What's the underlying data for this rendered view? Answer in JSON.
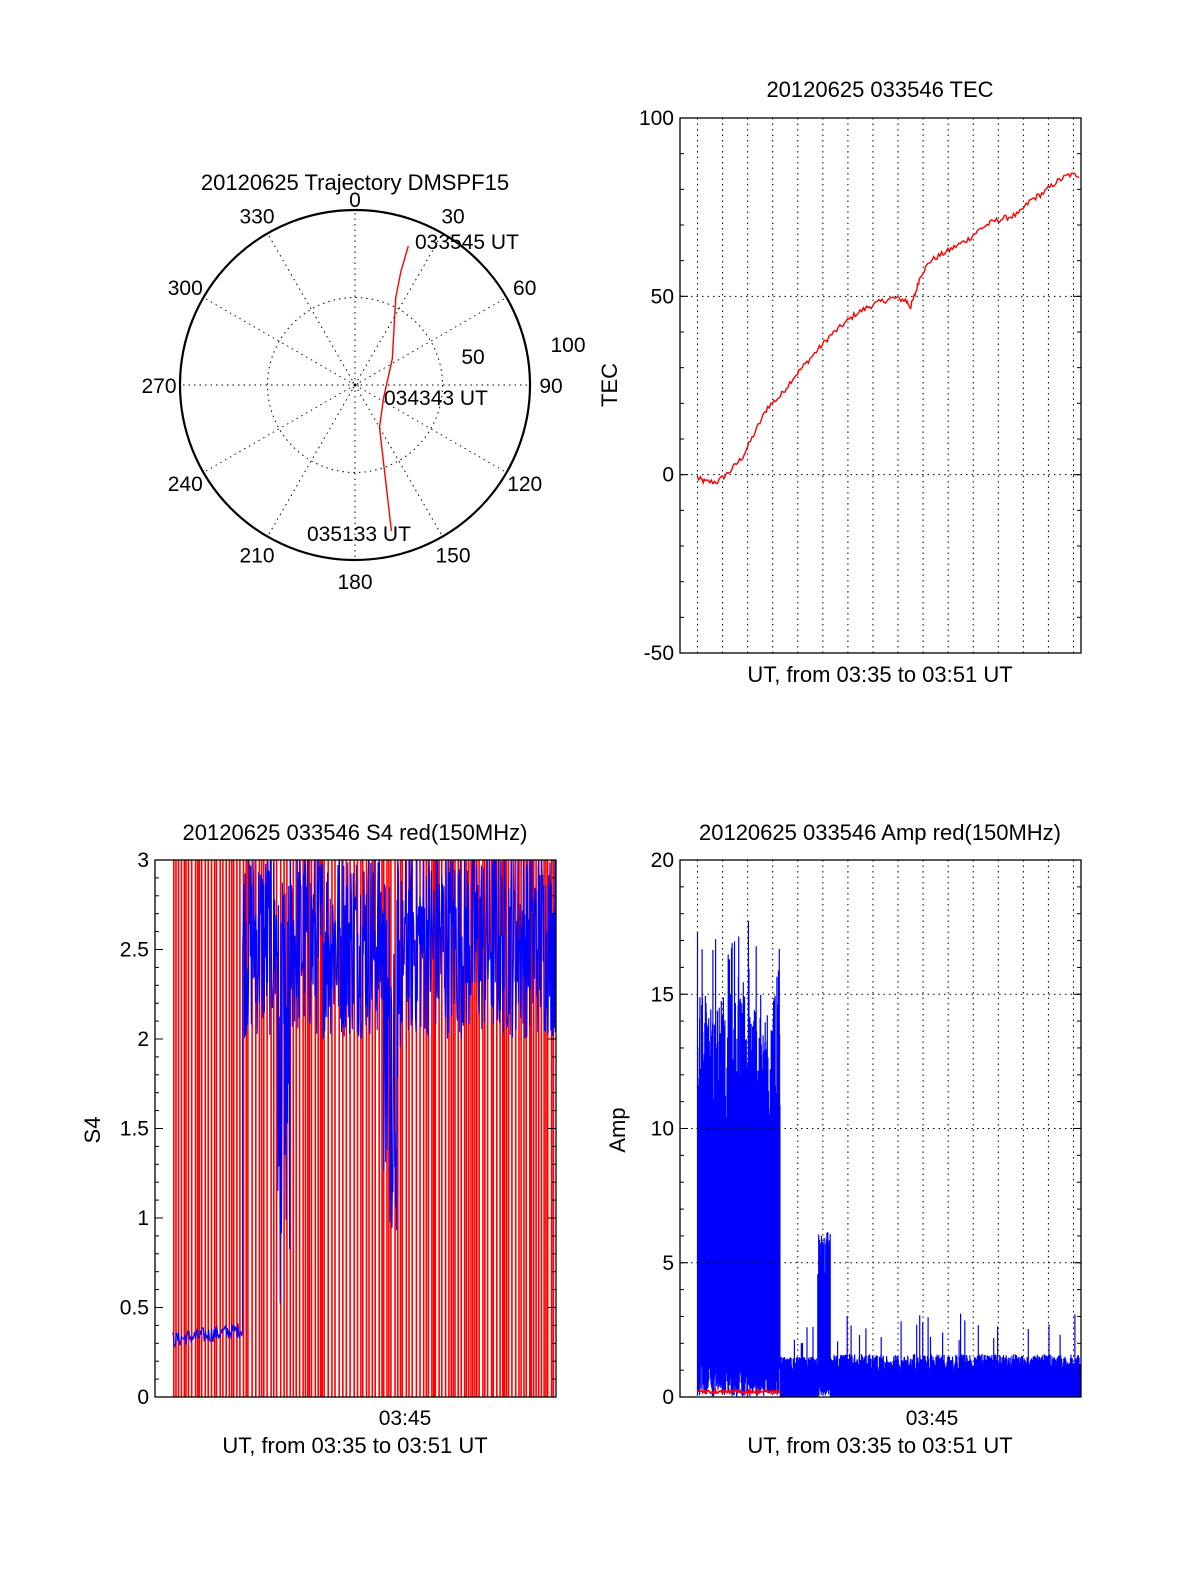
{
  "colors": {
    "red": "#ff0000",
    "blue": "#0000ff",
    "axis": "#000000"
  },
  "chart_data": [
    {
      "id": "polar",
      "type": "polar-trajectory",
      "title": "20120625 Trajectory DMSPF15",
      "angle_labels": [
        "0",
        "30",
        "60",
        "90",
        "120",
        "150",
        "180",
        "210",
        "240",
        "270",
        "300",
        "330"
      ],
      "radial_labels": [
        "50",
        "100"
      ],
      "rlim": [
        0,
        100
      ],
      "annotations": [
        "033545 UT",
        "034343 UT",
        "035133 UT"
      ],
      "trajectory": [
        {
          "az": 21,
          "r": 85
        },
        {
          "az": 22,
          "r": 70
        },
        {
          "az": 25,
          "r": 55
        },
        {
          "az": 34,
          "r": 40
        },
        {
          "az": 55,
          "r": 26
        },
        {
          "az": 115,
          "r": 18
        },
        {
          "az": 150,
          "r": 28
        },
        {
          "az": 160,
          "r": 48
        },
        {
          "az": 164,
          "r": 68
        },
        {
          "az": 166,
          "r": 86
        }
      ],
      "series": [
        {
          "color": "#ff0000",
          "values": []
        }
      ]
    },
    {
      "id": "tec",
      "type": "line",
      "title": "20120625 033546 TEC",
      "xlabel": "UT, from 03:35 to 03:51 UT",
      "ylabel": "TEC",
      "ylim": [
        -50,
        100
      ],
      "yticks": [
        "-50",
        "0",
        "50",
        "100"
      ],
      "xlim": [
        0,
        16
      ],
      "grid": true,
      "points": [
        [
          0.7,
          -1
        ],
        [
          1.0,
          -2
        ],
        [
          1.5,
          -2
        ],
        [
          2.0,
          1
        ],
        [
          2.5,
          5
        ],
        [
          3.0,
          12
        ],
        [
          3.5,
          19
        ],
        [
          4.0,
          22
        ],
        [
          4.5,
          27
        ],
        [
          5.0,
          31
        ],
        [
          5.5,
          35
        ],
        [
          6.0,
          39
        ],
        [
          6.5,
          42
        ],
        [
          7.0,
          45
        ],
        [
          7.5,
          47
        ],
        [
          8.0,
          48.5
        ],
        [
          8.5,
          49.5
        ],
        [
          9.0,
          49
        ],
        [
          9.2,
          47
        ],
        [
          9.4,
          51
        ],
        [
          9.6,
          56
        ],
        [
          10.0,
          60
        ],
        [
          10.5,
          62
        ],
        [
          11.0,
          64
        ],
        [
          11.5,
          66
        ],
        [
          12.0,
          69
        ],
        [
          12.5,
          71
        ],
        [
          13.0,
          72
        ],
        [
          13.5,
          73
        ],
        [
          14.0,
          77
        ],
        [
          14.5,
          79
        ],
        [
          15.0,
          82
        ],
        [
          15.5,
          84
        ],
        [
          16.0,
          84
        ]
      ],
      "series": [
        {
          "color": "#ff0000",
          "values": []
        }
      ]
    },
    {
      "id": "s4",
      "type": "line",
      "title": "20120625 033546 S4 red(150MHz)",
      "xlabel": "UT, from 03:35 to 03:51 UT",
      "ylabel": "S4",
      "ylim": [
        0,
        3
      ],
      "yticks": [
        "0",
        "0.5",
        "1",
        "1.5",
        "2",
        "2.5",
        "3"
      ],
      "xticks": [
        "03:45"
      ],
      "xlim": [
        0,
        16
      ],
      "grid": false,
      "series": [
        {
          "color": "#ff0000",
          "description_values": "dense spikes from 0 to 3 across whole window"
        },
        {
          "color": "#0000ff",
          "segments": [
            {
              "x": [
                0.7,
                3.5
              ],
              "level": 0.32
            },
            {
              "x": [
                3.5,
                16.0
              ],
              "level": 2.6
            }
          ]
        }
      ]
    },
    {
      "id": "amp",
      "type": "line",
      "title": "20120625 033546 Amp red(150MHz)",
      "xlabel": "UT, from 03:35 to 03:51 UT",
      "ylabel": "Amp",
      "ylim": [
        0,
        20
      ],
      "yticks": [
        "0",
        "5",
        "10",
        "15",
        "20"
      ],
      "xticks": [
        "03:45"
      ],
      "xlim": [
        0,
        16
      ],
      "grid": true,
      "series": [
        {
          "color": "#0000ff",
          "segments": [
            {
              "x": [
                0.7,
                4.0
              ],
              "low": 1.5,
              "high": 15
            },
            {
              "x": [
                4.0,
                5.5
              ],
              "low": 0,
              "high": 1.5
            },
            {
              "x": [
                5.5,
                6.0
              ],
              "low": 0.5,
              "high": 6.2
            },
            {
              "x": [
                6.0,
                16.0
              ],
              "low": 0,
              "high": 1.6
            }
          ]
        },
        {
          "color": "#ff0000",
          "segments": [
            {
              "x": [
                0.7,
                4.0
              ],
              "level": 0.2
            }
          ]
        }
      ]
    }
  ]
}
